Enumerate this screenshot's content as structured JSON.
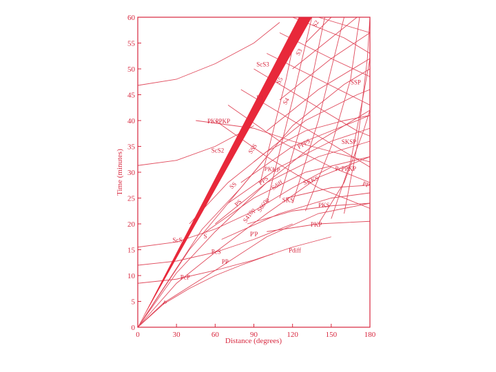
{
  "chart_data": {
    "type": "line",
    "xlabel": "Distance (degrees)",
    "ylabel": "Time (minutes)",
    "xlim": [
      0,
      180
    ],
    "ylim": [
      0,
      60
    ],
    "x_ticks": [
      0,
      30,
      60,
      90,
      120,
      150,
      180
    ],
    "y_ticks": [
      0,
      5,
      10,
      15,
      20,
      25,
      30,
      35,
      40,
      45,
      50,
      55,
      60
    ],
    "colors": {
      "curves": "#e04a5c",
      "band": "#e8283a",
      "frame": "#d7263d"
    },
    "band": {
      "left": [
        [
          0,
          0
        ],
        [
          125,
          60
        ]
      ],
      "right": [
        [
          0,
          0
        ],
        [
          135,
          60
        ]
      ]
    },
    "series": [
      {
        "points": [
          [
            0,
            0
          ],
          [
            20,
            4.5
          ],
          [
            40,
            7.5
          ],
          [
            60,
            10
          ],
          [
            80,
            12
          ],
          [
            100,
            13.8
          ],
          [
            105,
            14.2
          ]
        ]
      },
      {
        "points": [
          [
            0,
            0
          ],
          [
            20,
            4.7
          ],
          [
            60,
            11
          ],
          [
            100,
            17.5
          ],
          [
            140,
            22
          ],
          [
            180,
            24
          ]
        ]
      },
      {
        "points": [
          [
            0,
            0
          ],
          [
            30,
            8.5
          ],
          [
            60,
            14.5
          ],
          [
            100,
            22
          ],
          [
            140,
            29
          ],
          [
            180,
            33
          ]
        ]
      },
      {
        "points": [
          [
            0,
            0
          ],
          [
            30,
            10.5
          ],
          [
            60,
            18.5
          ],
          [
            100,
            28
          ],
          [
            140,
            36
          ],
          [
            180,
            42
          ]
        ]
      },
      {
        "points": [
          [
            0,
            0
          ],
          [
            40,
            15
          ],
          [
            80,
            27
          ],
          [
            120,
            39
          ],
          [
            160,
            47
          ],
          [
            180,
            50
          ]
        ]
      },
      {
        "points": [
          [
            0,
            0
          ],
          [
            50,
            19
          ],
          [
            80,
            27
          ],
          [
            100,
            33
          ]
        ]
      },
      {
        "points": [
          [
            0,
            8.5
          ],
          [
            30,
            9.3
          ],
          [
            60,
            11
          ],
          [
            90,
            13
          ],
          [
            120,
            15.5
          ],
          [
            150,
            17.5
          ]
        ]
      },
      {
        "points": [
          [
            0,
            12
          ],
          [
            30,
            12.8
          ],
          [
            60,
            14.5
          ],
          [
            90,
            17
          ],
          [
            120,
            20
          ]
        ]
      },
      {
        "points": [
          [
            0,
            15.5
          ],
          [
            30,
            16.5
          ],
          [
            60,
            19
          ],
          [
            90,
            22.5
          ],
          [
            120,
            27
          ],
          [
            150,
            31
          ]
        ]
      },
      {
        "points": [
          [
            0,
            31.3
          ],
          [
            30,
            32.3
          ],
          [
            60,
            35
          ],
          [
            90,
            39
          ]
        ]
      },
      {
        "points": [
          [
            0,
            46.8
          ],
          [
            30,
            48
          ],
          [
            60,
            51
          ],
          [
            90,
            55
          ],
          [
            110,
            59
          ]
        ]
      },
      {
        "points": [
          [
            85,
            20
          ],
          [
            120,
            22.5
          ],
          [
            150,
            23.5
          ],
          [
            180,
            24
          ]
        ]
      },
      {
        "points": [
          [
            100,
            18.5
          ],
          [
            140,
            20
          ],
          [
            180,
            20.5
          ]
        ]
      },
      {
        "points": [
          [
            115,
            25
          ],
          [
            150,
            27
          ],
          [
            180,
            27.5
          ]
        ]
      },
      {
        "points": [
          [
            45,
            40
          ],
          [
            90,
            38.5
          ],
          [
            120,
            36
          ],
          [
            150,
            34
          ],
          [
            180,
            32
          ]
        ]
      },
      {
        "points": [
          [
            60,
            40
          ],
          [
            100,
            33
          ],
          [
            140,
            27
          ],
          [
            180,
            23
          ]
        ]
      },
      {
        "points": [
          [
            70,
            43
          ],
          [
            110,
            36
          ],
          [
            150,
            31
          ],
          [
            180,
            28
          ]
        ]
      },
      {
        "points": [
          [
            80,
            46
          ],
          [
            120,
            40
          ],
          [
            160,
            34
          ],
          [
            180,
            31
          ]
        ]
      },
      {
        "points": [
          [
            90,
            50
          ],
          [
            130,
            44
          ],
          [
            170,
            38
          ],
          [
            180,
            37
          ]
        ]
      },
      {
        "points": [
          [
            100,
            53
          ],
          [
            140,
            48
          ],
          [
            180,
            43
          ]
        ]
      },
      {
        "points": [
          [
            110,
            57
          ],
          [
            150,
            52
          ],
          [
            180,
            48.5
          ]
        ]
      },
      {
        "points": [
          [
            120,
            60
          ],
          [
            160,
            56
          ],
          [
            180,
            53
          ]
        ]
      },
      {
        "points": [
          [
            140,
            60
          ],
          [
            180,
            57
          ]
        ]
      },
      {
        "points": [
          [
            60,
            20
          ],
          [
            100,
            28
          ],
          [
            140,
            33
          ],
          [
            180,
            36
          ]
        ]
      },
      {
        "points": [
          [
            70,
            24
          ],
          [
            110,
            31
          ],
          [
            150,
            36
          ],
          [
            180,
            38.5
          ]
        ]
      },
      {
        "points": [
          [
            80,
            28
          ],
          [
            120,
            35
          ],
          [
            160,
            39
          ],
          [
            180,
            41
          ]
        ]
      },
      {
        "points": [
          [
            90,
            32
          ],
          [
            130,
            40
          ],
          [
            170,
            45
          ],
          [
            180,
            46
          ]
        ]
      },
      {
        "points": [
          [
            100,
            38
          ],
          [
            140,
            46
          ],
          [
            180,
            52
          ]
        ]
      },
      {
        "points": [
          [
            110,
            44
          ],
          [
            150,
            52
          ],
          [
            180,
            57
          ]
        ]
      },
      {
        "points": [
          [
            120,
            50
          ],
          [
            160,
            58
          ],
          [
            170,
            60
          ]
        ]
      },
      {
        "points": [
          [
            130,
            55
          ],
          [
            150,
            60
          ]
        ]
      },
      {
        "points": [
          [
            140,
            20
          ],
          [
            160,
            28
          ],
          [
            175,
            38
          ],
          [
            180,
            42
          ]
        ]
      },
      {
        "points": [
          [
            150,
            21
          ],
          [
            165,
            32
          ],
          [
            175,
            45
          ],
          [
            180,
            52
          ]
        ]
      },
      {
        "points": [
          [
            160,
            22
          ],
          [
            170,
            35
          ],
          [
            178,
            52
          ],
          [
            180,
            60
          ]
        ]
      },
      {
        "points": [
          [
            130,
            22.5
          ],
          [
            150,
            35
          ],
          [
            165,
            48
          ],
          [
            172,
            60
          ]
        ]
      },
      {
        "points": [
          [
            120,
            24
          ],
          [
            140,
            40
          ],
          [
            155,
            55
          ],
          [
            160,
            60
          ]
        ]
      },
      {
        "points": [
          [
            110,
            25
          ],
          [
            130,
            42
          ],
          [
            145,
            60
          ]
        ]
      },
      {
        "points": [
          [
            100,
            24
          ],
          [
            120,
            44
          ],
          [
            135,
            60
          ]
        ]
      },
      {
        "points": [
          [
            95,
            28
          ],
          [
            115,
            48
          ],
          [
            125,
            60
          ]
        ]
      },
      {
        "points": [
          [
            40,
            20
          ],
          [
            70,
            28
          ],
          [
            100,
            34
          ],
          [
            130,
            38
          ],
          [
            160,
            40
          ],
          [
            180,
            41
          ]
        ]
      },
      {
        "points": [
          [
            50,
            18
          ],
          [
            90,
            25
          ],
          [
            130,
            30
          ],
          [
            180,
            33
          ]
        ]
      },
      {
        "points": [
          [
            65,
            17
          ],
          [
            110,
            22
          ],
          [
            150,
            25
          ],
          [
            180,
            26
          ]
        ]
      }
    ],
    "labels": [
      {
        "text": "P",
        "x": 19,
        "y": 4.5,
        "rot": -25
      },
      {
        "text": "PcP",
        "x": 33,
        "y": 9.3,
        "rot": 0
      },
      {
        "text": "ScS",
        "x": 27,
        "y": 16.5,
        "rot": 0
      },
      {
        "text": "S",
        "x": 51,
        "y": 17.2,
        "rot": 0
      },
      {
        "text": "PcS",
        "x": 57,
        "y": 14.2,
        "rot": 0
      },
      {
        "text": "PP",
        "x": 65,
        "y": 12.3,
        "rot": 0
      },
      {
        "text": "Pdiff",
        "x": 117,
        "y": 14.5,
        "rot": 0
      },
      {
        "text": "PKP",
        "x": 134,
        "y": 19.5,
        "rot": 0
      },
      {
        "text": "PKS",
        "x": 140,
        "y": 23.2,
        "rot": 0
      },
      {
        "text": "SKS",
        "x": 112,
        "y": 24.2,
        "rot": 0
      },
      {
        "text": "P'P",
        "x": 87,
        "y": 17.6,
        "rot": 0
      },
      {
        "text": "S410p",
        "x": 84,
        "y": 20.2,
        "rot": 55
      },
      {
        "text": "S660p",
        "x": 95,
        "y": 22.2,
        "rot": 55
      },
      {
        "text": "PS",
        "x": 77,
        "y": 23.3,
        "rot": 45
      },
      {
        "text": "SS",
        "x": 73,
        "y": 26.7,
        "rot": 45
      },
      {
        "text": "PPS",
        "x": 95,
        "y": 27.5,
        "rot": 35
      },
      {
        "text": "Sdiff",
        "x": 105,
        "y": 26.5,
        "rot": 35
      },
      {
        "text": "SKKS",
        "x": 129,
        "y": 27.5,
        "rot": 20
      },
      {
        "text": "PKKP",
        "x": 98,
        "y": 30.3,
        "rot": -5
      },
      {
        "text": "PcPPKP",
        "x": 153,
        "y": 30.3,
        "rot": 0
      },
      {
        "text": "PP",
        "x": 174,
        "y": 27.5,
        "rot": -20
      },
      {
        "text": "PPPS",
        "x": 125,
        "y": 34.5,
        "rot": 30
      },
      {
        "text": "SKSP",
        "x": 158,
        "y": 35.5,
        "rot": 0
      },
      {
        "text": "SSS",
        "x": 88,
        "y": 33.5,
        "rot": 55
      },
      {
        "text": "ScS2",
        "x": 57,
        "y": 33.8,
        "rot": 0
      },
      {
        "text": "PKPPKP",
        "x": 54,
        "y": 39.5,
        "rot": 0
      },
      {
        "text": "R1",
        "x": 92,
        "y": 44,
        "rot": 0
      },
      {
        "text": "S4",
        "x": 115,
        "y": 43,
        "rot": 60
      },
      {
        "text": "S5",
        "x": 110,
        "y": 47,
        "rot": 60
      },
      {
        "text": "S3",
        "x": 125,
        "y": 52.5,
        "rot": 60
      },
      {
        "text": "ScS3",
        "x": 92,
        "y": 50.5,
        "rot": 0
      },
      {
        "text": "SSP",
        "x": 165,
        "y": 47,
        "rot": 0
      },
      {
        "text": "S2",
        "x": 138,
        "y": 58,
        "rot": 60
      }
    ]
  }
}
